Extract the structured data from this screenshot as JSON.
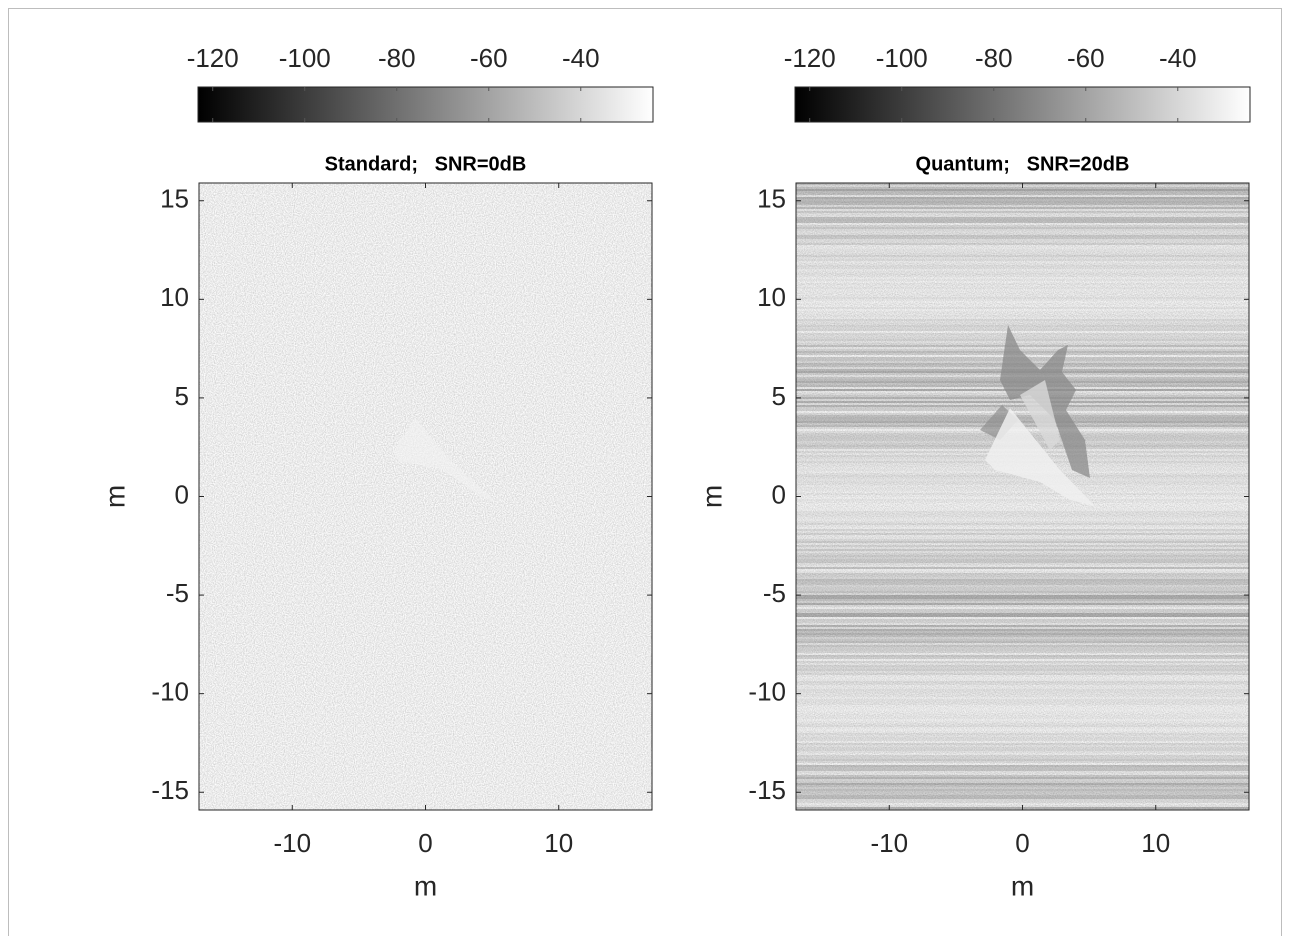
{
  "chart_data": [
    {
      "type": "image",
      "title": "Standard;   SNR=0dB",
      "x_label": "m",
      "y_label": "m",
      "xlim": [
        -17,
        17
      ],
      "ylim": [
        -15.9,
        15.9
      ],
      "xticks": [
        -10,
        0,
        10
      ],
      "yticks": [
        -15,
        -10,
        -5,
        0,
        5,
        10,
        15
      ],
      "colormap": "gray",
      "colorbar": {
        "lim": [
          -123.2,
          -24.3
        ],
        "ticks": [
          -120,
          -100,
          -80,
          -60,
          -40
        ]
      }
    },
    {
      "type": "image",
      "title": "Quantum;   SNR=20dB",
      "x_label": "m",
      "y_label": "m",
      "xlim": [
        -17,
        17
      ],
      "ylim": [
        -15.9,
        15.9
      ],
      "xticks": [
        -10,
        0,
        10
      ],
      "yticks": [
        -15,
        -10,
        -5,
        0,
        5,
        10,
        15
      ],
      "colormap": "gray",
      "colorbar": {
        "lim": [
          -123.2,
          -24.3
        ],
        "ticks": [
          -120,
          -100,
          -80,
          -60,
          -40
        ]
      }
    }
  ]
}
